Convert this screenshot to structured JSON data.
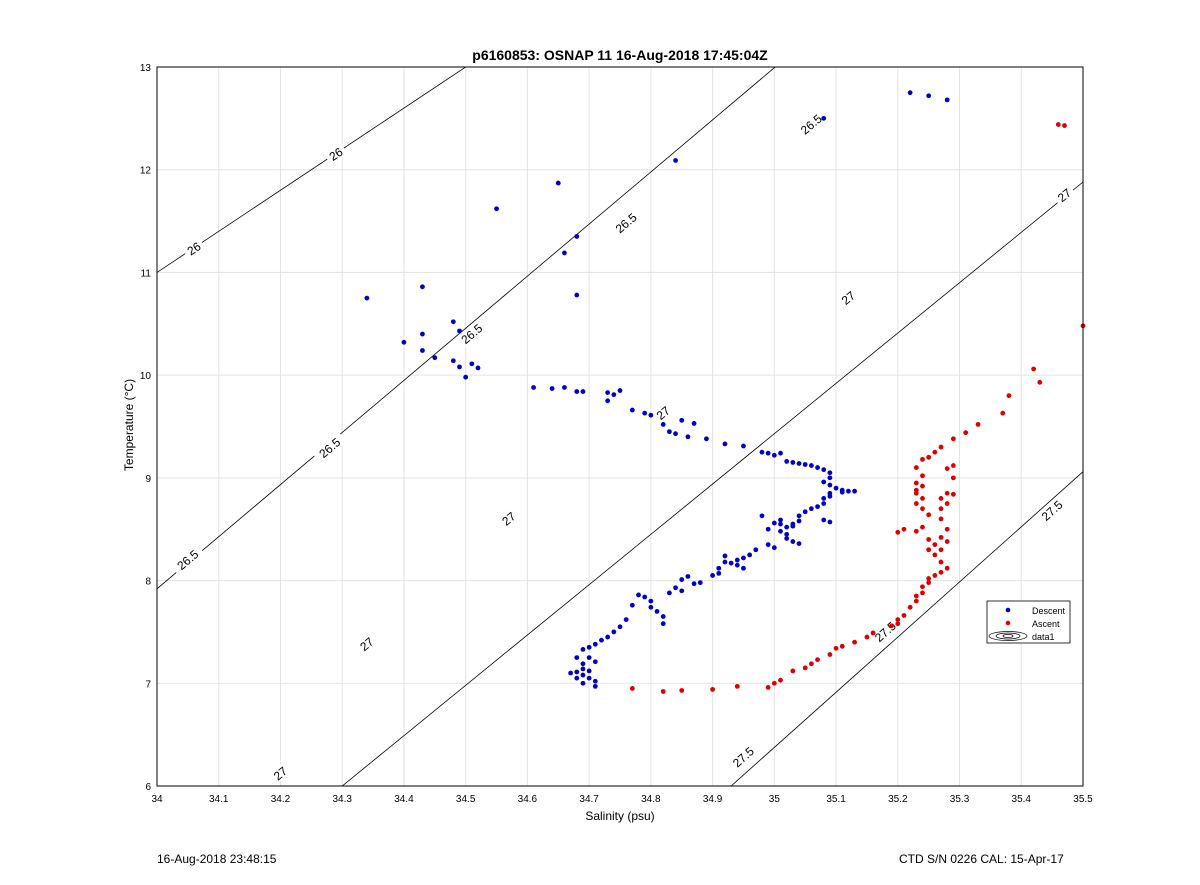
{
  "chart_data": {
    "type": "scatter",
    "title": "p6160853: OSNAP 11 16-Aug-2018 17:45:04Z",
    "xlabel": "Salinity (psu)",
    "ylabel": "Temperature (°C)",
    "xlim": [
      34,
      35.5
    ],
    "ylim": [
      6,
      13
    ],
    "xticks": [
      "34",
      "34.1",
      "34.2",
      "34.3",
      "34.4",
      "34.5",
      "34.6",
      "34.7",
      "34.8",
      "34.9",
      "35",
      "35.1",
      "35.2",
      "35.3",
      "35.4",
      "35.5"
    ],
    "yticks": [
      "6",
      "7",
      "8",
      "9",
      "10",
      "11",
      "12",
      "13"
    ],
    "grid": true,
    "legend_position": "right",
    "legend": [
      "Descent",
      "Ascent",
      "data1"
    ],
    "colors": {
      "descent": "#0000cc",
      "ascent": "#dd0000",
      "grid": "#e3e3e3"
    },
    "contours": [
      {
        "label": "26",
        "line": [
          [
            34.0,
            11.0
          ],
          [
            34.7,
            13.8
          ]
        ],
        "labels_at": [
          [
            34.29,
            12.15
          ],
          [
            34.06,
            11.23
          ]
        ]
      },
      {
        "label": "26.5",
        "line": [
          [
            34.0,
            7.92
          ],
          [
            35.1,
            13.5
          ]
        ],
        "labels_at": [
          [
            35.06,
            12.44
          ],
          [
            34.76,
            11.48
          ],
          [
            34.51,
            10.4
          ],
          [
            34.28,
            9.29
          ],
          [
            34.05,
            8.2
          ]
        ]
      },
      {
        "label": "27",
        "line": [
          [
            34.3,
            6.0
          ],
          [
            35.5,
            11.88
          ]
        ],
        "labels_at": [
          [
            35.47,
            11.75
          ],
          [
            35.12,
            10.75
          ],
          [
            34.82,
            9.63
          ],
          [
            34.57,
            8.6
          ],
          [
            34.34,
            7.38
          ],
          [
            34.2,
            6.12
          ]
        ]
      },
      {
        "label": "27.5",
        "line": [
          [
            34.93,
            6.0
          ],
          [
            35.5,
            9.06
          ]
        ],
        "labels_at": [
          [
            35.45,
            8.68
          ],
          [
            35.18,
            7.5
          ],
          [
            34.95,
            6.28
          ]
        ]
      }
    ],
    "series": [
      {
        "name": "Descent",
        "points": [
          [
            35.22,
            12.75
          ],
          [
            35.25,
            12.72
          ],
          [
            35.28,
            12.68
          ],
          [
            35.08,
            12.5
          ],
          [
            34.84,
            12.09
          ],
          [
            34.65,
            11.87
          ],
          [
            34.55,
            11.62
          ],
          [
            34.68,
            11.35
          ],
          [
            34.66,
            11.19
          ],
          [
            34.68,
            10.78
          ],
          [
            34.34,
            10.75
          ],
          [
            34.43,
            10.86
          ],
          [
            34.4,
            10.32
          ],
          [
            34.43,
            10.4
          ],
          [
            34.43,
            10.24
          ],
          [
            34.45,
            10.17
          ],
          [
            34.48,
            10.52
          ],
          [
            34.49,
            10.43
          ],
          [
            34.48,
            10.14
          ],
          [
            34.49,
            10.08
          ],
          [
            34.5,
            9.98
          ],
          [
            34.51,
            10.11
          ],
          [
            34.52,
            10.07
          ],
          [
            34.61,
            9.88
          ],
          [
            34.64,
            9.87
          ],
          [
            34.66,
            9.88
          ],
          [
            34.68,
            9.84
          ],
          [
            34.69,
            9.84
          ],
          [
            34.73,
            9.75
          ],
          [
            34.73,
            9.83
          ],
          [
            34.74,
            9.81
          ],
          [
            34.75,
            9.85
          ],
          [
            34.77,
            9.66
          ],
          [
            34.79,
            9.63
          ],
          [
            34.8,
            9.61
          ],
          [
            34.82,
            9.52
          ],
          [
            34.83,
            9.45
          ],
          [
            34.84,
            9.43
          ],
          [
            34.85,
            9.56
          ],
          [
            34.86,
            9.4
          ],
          [
            34.87,
            9.53
          ],
          [
            34.89,
            9.38
          ],
          [
            34.92,
            9.33
          ],
          [
            34.95,
            9.31
          ],
          [
            34.98,
            9.25
          ],
          [
            34.99,
            9.24
          ],
          [
            35.0,
            9.22
          ],
          [
            35.01,
            9.24
          ],
          [
            35.02,
            9.16
          ],
          [
            35.03,
            9.15
          ],
          [
            35.04,
            9.14
          ],
          [
            35.05,
            9.13
          ],
          [
            35.06,
            9.12
          ],
          [
            35.07,
            9.1
          ],
          [
            35.08,
            9.08
          ],
          [
            35.09,
            9.05
          ],
          [
            35.09,
            9.0
          ],
          [
            35.08,
            8.96
          ],
          [
            35.09,
            8.93
          ],
          [
            35.1,
            8.9
          ],
          [
            35.11,
            8.88
          ],
          [
            35.12,
            8.87
          ],
          [
            35.13,
            8.87
          ],
          [
            35.11,
            8.86
          ],
          [
            35.09,
            8.85
          ],
          [
            35.09,
            8.82
          ],
          [
            35.08,
            8.8
          ],
          [
            35.08,
            8.75
          ],
          [
            35.07,
            8.72
          ],
          [
            35.06,
            8.7
          ],
          [
            35.05,
            8.67
          ],
          [
            35.04,
            8.63
          ],
          [
            35.04,
            8.58
          ],
          [
            35.03,
            8.55
          ],
          [
            35.03,
            8.53
          ],
          [
            35.02,
            8.52
          ],
          [
            35.01,
            8.55
          ],
          [
            35.01,
            8.59
          ],
          [
            35.0,
            8.56
          ],
          [
            35.01,
            8.48
          ],
          [
            35.02,
            8.45
          ],
          [
            35.02,
            8.41
          ],
          [
            35.03,
            8.38
          ],
          [
            35.04,
            8.36
          ],
          [
            34.98,
            8.63
          ],
          [
            34.99,
            8.5
          ],
          [
            34.99,
            8.35
          ],
          [
            35.0,
            8.32
          ],
          [
            35.08,
            8.59
          ],
          [
            35.09,
            8.57
          ],
          [
            34.97,
            8.3
          ],
          [
            34.96,
            8.25
          ],
          [
            34.95,
            8.22
          ],
          [
            34.94,
            8.2
          ],
          [
            34.93,
            8.17
          ],
          [
            34.94,
            8.15
          ],
          [
            34.95,
            8.12
          ],
          [
            34.92,
            8.24
          ],
          [
            34.92,
            8.18
          ],
          [
            34.91,
            8.12
          ],
          [
            34.91,
            8.07
          ],
          [
            34.9,
            8.05
          ],
          [
            34.88,
            7.98
          ],
          [
            34.87,
            7.97
          ],
          [
            34.86,
            8.04
          ],
          [
            34.85,
            8.01
          ],
          [
            34.84,
            7.93
          ],
          [
            34.85,
            7.9
          ],
          [
            34.83,
            7.88
          ],
          [
            34.82,
            7.65
          ],
          [
            34.81,
            7.7
          ],
          [
            34.82,
            7.58
          ],
          [
            34.8,
            7.8
          ],
          [
            34.79,
            7.84
          ],
          [
            34.8,
            7.74
          ],
          [
            34.78,
            7.86
          ],
          [
            34.77,
            7.76
          ],
          [
            34.76,
            7.62
          ],
          [
            34.75,
            7.55
          ],
          [
            34.74,
            7.5
          ],
          [
            34.73,
            7.45
          ],
          [
            34.72,
            7.42
          ],
          [
            34.71,
            7.38
          ],
          [
            34.7,
            7.35
          ],
          [
            34.69,
            7.33
          ],
          [
            34.7,
            7.25
          ],
          [
            34.71,
            7.21
          ],
          [
            34.69,
            7.19
          ],
          [
            34.7,
            7.12
          ],
          [
            34.69,
            7.08
          ],
          [
            34.7,
            7.05
          ],
          [
            34.71,
            7.02
          ],
          [
            34.71,
            6.97
          ],
          [
            34.69,
            7.0
          ],
          [
            34.68,
            7.05
          ],
          [
            34.68,
            7.11
          ],
          [
            34.67,
            7.1
          ],
          [
            34.68,
            7.25
          ],
          [
            34.69,
            7.14
          ]
        ]
      },
      {
        "name": "Ascent",
        "points": [
          [
            35.46,
            12.44
          ],
          [
            35.47,
            12.43
          ],
          [
            35.5,
            10.48
          ],
          [
            35.42,
            10.06
          ],
          [
            35.43,
            9.93
          ],
          [
            35.38,
            9.8
          ],
          [
            35.37,
            9.63
          ],
          [
            35.33,
            9.52
          ],
          [
            35.31,
            9.44
          ],
          [
            35.29,
            9.38
          ],
          [
            35.29,
            9.12
          ],
          [
            35.28,
            9.09
          ],
          [
            35.29,
            9.0
          ],
          [
            35.29,
            8.84
          ],
          [
            35.28,
            8.85
          ],
          [
            35.27,
            9.3
          ],
          [
            35.26,
            9.25
          ],
          [
            35.25,
            9.2
          ],
          [
            35.24,
            9.18
          ],
          [
            35.23,
            9.1
          ],
          [
            35.24,
            9.02
          ],
          [
            35.23,
            8.95
          ],
          [
            35.24,
            8.92
          ],
          [
            35.23,
            8.88
          ],
          [
            35.23,
            8.85
          ],
          [
            35.24,
            8.8
          ],
          [
            35.23,
            8.75
          ],
          [
            35.24,
            8.7
          ],
          [
            35.25,
            8.64
          ],
          [
            35.24,
            8.52
          ],
          [
            35.23,
            8.48
          ],
          [
            35.27,
            8.8
          ],
          [
            35.28,
            8.75
          ],
          [
            35.27,
            8.7
          ],
          [
            35.27,
            8.6
          ],
          [
            35.28,
            8.5
          ],
          [
            35.27,
            8.42
          ],
          [
            35.28,
            8.38
          ],
          [
            35.27,
            8.3
          ],
          [
            35.26,
            8.25
          ],
          [
            35.27,
            8.18
          ],
          [
            35.28,
            8.12
          ],
          [
            35.27,
            8.08
          ],
          [
            35.26,
            8.05
          ],
          [
            35.25,
            8.02
          ],
          [
            35.25,
            7.98
          ],
          [
            35.24,
            7.94
          ],
          [
            35.24,
            7.88
          ],
          [
            35.23,
            7.85
          ],
          [
            35.23,
            7.8
          ],
          [
            35.22,
            7.74
          ],
          [
            35.21,
            7.66
          ],
          [
            35.2,
            7.62
          ],
          [
            35.2,
            7.58
          ],
          [
            35.19,
            7.56
          ],
          [
            35.16,
            7.49
          ],
          [
            35.15,
            7.45
          ],
          [
            35.13,
            7.4
          ],
          [
            35.11,
            7.36
          ],
          [
            35.1,
            7.34
          ],
          [
            35.09,
            7.28
          ],
          [
            35.07,
            7.23
          ],
          [
            35.06,
            7.19
          ],
          [
            35.05,
            7.15
          ],
          [
            35.03,
            7.12
          ],
          [
            35.01,
            7.03
          ],
          [
            35.0,
            7.0
          ],
          [
            34.99,
            6.96
          ],
          [
            34.94,
            6.97
          ],
          [
            34.9,
            6.94
          ],
          [
            34.85,
            6.93
          ],
          [
            34.82,
            6.92
          ],
          [
            34.77,
            6.95
          ],
          [
            35.2,
            8.47
          ],
          [
            35.21,
            8.5
          ],
          [
            35.25,
            8.4
          ],
          [
            35.26,
            8.35
          ],
          [
            35.25,
            8.3
          ]
        ]
      }
    ]
  },
  "footer": {
    "timestamp": "16-Aug-2018 23:48:15",
    "calibration": "CTD S/N 0226  CAL: 15-Apr-17"
  }
}
